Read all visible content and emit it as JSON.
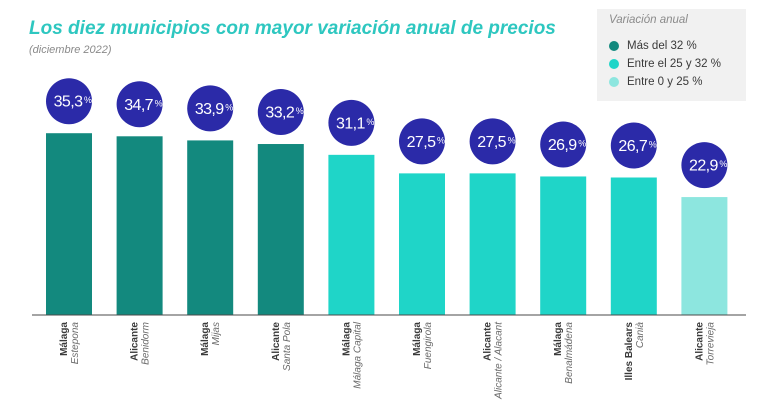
{
  "title": "Los diez municipios con mayor variación anual de precios",
  "subtitle": "(diciembre 2022)",
  "legend": {
    "title": "Variación anual",
    "items": [
      {
        "label": "Más del 32 %",
        "color": "#13897e"
      },
      {
        "label": "Entre el 25 y 32 %",
        "color": "#1fd5c8"
      },
      {
        "label": "Entre 0 y 25 %",
        "color": "#8de6df"
      }
    ]
  },
  "badge_color": "#2b2aa8",
  "chart_data": {
    "type": "bar",
    "title": "Los diez municipios con mayor variación anual de precios",
    "subtitle": "(diciembre 2022)",
    "categories": [
      {
        "province": "Málaga",
        "municipality": "Estepona"
      },
      {
        "province": "Alicante",
        "municipality": "Benidorm"
      },
      {
        "province": "Málaga",
        "municipality": "Mijas"
      },
      {
        "province": "Alicante",
        "municipality": "Santa Pola"
      },
      {
        "province": "Málaga",
        "municipality": "Málaga Capital"
      },
      {
        "province": "Málaga",
        "municipality": "Fuengirola"
      },
      {
        "province": "Alicante",
        "municipality": "Alicante / Alacant"
      },
      {
        "province": "Málaga",
        "municipality": "Benalmádena"
      },
      {
        "province": "Illes Balears",
        "municipality": "Canià"
      },
      {
        "province": "Alicante",
        "municipality": "Torrevieja"
      }
    ],
    "values": [
      35.3,
      34.7,
      33.9,
      33.2,
      31.1,
      27.5,
      27.5,
      26.9,
      26.7,
      22.9
    ],
    "labels": [
      "35,3",
      "34,7",
      "33,9",
      "33,2",
      "31,1",
      "27,5",
      "27,5",
      "26,9",
      "26,7",
      "22,9"
    ],
    "unit": "%",
    "groups": [
      0,
      0,
      0,
      0,
      1,
      1,
      1,
      1,
      1,
      2
    ],
    "group_colors": [
      "#13897e",
      "#1fd5c8",
      "#8de6df"
    ],
    "grid": false
  }
}
